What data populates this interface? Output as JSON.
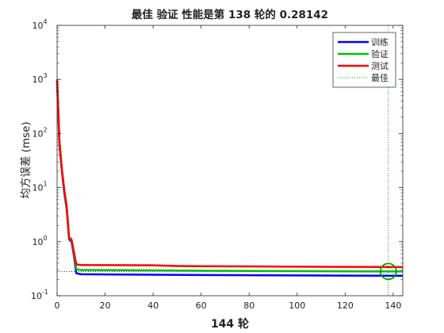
{
  "chart_data": {
    "type": "line",
    "title": "最佳 验证 性能是第 138 轮的 0.28142",
    "xlabel": "144 轮",
    "ylabel": "均方误差 (mse)",
    "xlim": [
      0,
      144
    ],
    "ylim": [
      0.1,
      10000
    ],
    "yscale": "log",
    "grid": false,
    "legend_position": "top-right",
    "x_ticks": [
      0,
      20,
      40,
      60,
      80,
      100,
      120,
      140
    ],
    "y_ticks": [
      {
        "base": "10",
        "exp": "-1",
        "value": 0.1
      },
      {
        "base": "10",
        "exp": "0",
        "value": 1
      },
      {
        "base": "10",
        "exp": "1",
        "value": 10
      },
      {
        "base": "10",
        "exp": "2",
        "value": 100
      },
      {
        "base": "10",
        "exp": "3",
        "value": 1000
      },
      {
        "base": "10",
        "exp": "4",
        "value": 10000
      }
    ],
    "series": [
      {
        "name": "训练",
        "color": "#0000ff",
        "x": [
          0,
          1,
          2,
          3,
          4,
          5,
          6,
          7,
          8,
          9,
          10,
          20,
          40,
          60,
          80,
          100,
          120,
          138,
          144
        ],
        "y": [
          900,
          60,
          20,
          8,
          4,
          1.1,
          1.0,
          0.55,
          0.26,
          0.255,
          0.25,
          0.248,
          0.245,
          0.242,
          0.24,
          0.238,
          0.236,
          0.235,
          0.234
        ]
      },
      {
        "name": "验证",
        "color": "#00c000",
        "x": [
          0,
          1,
          2,
          3,
          4,
          5,
          6,
          7,
          8,
          9,
          10,
          20,
          40,
          60,
          80,
          100,
          120,
          138,
          144
        ],
        "y": [
          950,
          65,
          21,
          8.5,
          4.2,
          1.15,
          1.05,
          0.6,
          0.31,
          0.305,
          0.3,
          0.298,
          0.295,
          0.29,
          0.287,
          0.285,
          0.283,
          0.28142,
          0.2814
        ]
      },
      {
        "name": "测试",
        "color": "#ff0000",
        "x": [
          0,
          1,
          2,
          3,
          4,
          5,
          6,
          7,
          8,
          9,
          10,
          20,
          40,
          50,
          60,
          80,
          100,
          120,
          138,
          144
        ],
        "y": [
          1000,
          70,
          22,
          9,
          4.5,
          1.2,
          1.1,
          0.65,
          0.38,
          0.375,
          0.37,
          0.368,
          0.365,
          0.355,
          0.352,
          0.348,
          0.345,
          0.342,
          0.34,
          0.339
        ]
      }
    ],
    "best": {
      "name": "最佳",
      "epoch": 138,
      "value": 0.28142,
      "color": "#00a000"
    }
  }
}
